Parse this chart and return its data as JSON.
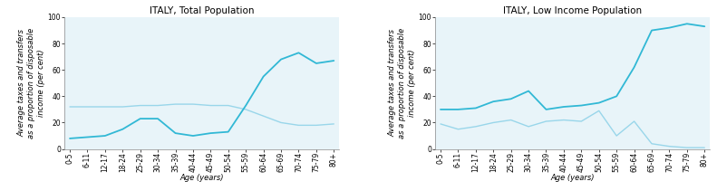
{
  "age_labels": [
    "0-5",
    "6-11",
    "12-17",
    "18-24",
    "25-29",
    "30-34",
    "35-39",
    "40-44",
    "45-49",
    "50-54",
    "55-59",
    "60-64",
    "65-69",
    "70-74",
    "75-79",
    "80+"
  ],
  "total_dark": [
    8,
    9,
    10,
    15,
    23,
    23,
    12,
    10,
    12,
    13,
    33,
    55,
    68,
    73,
    65,
    67
  ],
  "total_light": [
    32,
    32,
    32,
    32,
    33,
    33,
    34,
    34,
    33,
    33,
    30,
    25,
    20,
    18,
    18,
    19
  ],
  "low_dark": [
    30,
    30,
    31,
    36,
    38,
    44,
    30,
    32,
    33,
    35,
    40,
    62,
    90,
    92,
    95,
    93
  ],
  "low_light": [
    19,
    15,
    17,
    20,
    22,
    17,
    21,
    22,
    21,
    29,
    10,
    21,
    4,
    2,
    1,
    1
  ],
  "title_left": "ITALY, Total Population",
  "title_right": "ITALY, Low Income Population",
  "ylabel": "Average taxes and transfers\nas a proportion of disposable\nincome (per cent)",
  "xlabel": "Age (years)",
  "ylim": [
    0,
    100
  ],
  "fig_bg": "#ffffff",
  "plot_bg": "#e8f4f9",
  "dark_line_color": "#31b8d5",
  "light_line_color": "#99d6ea",
  "title_fontsize": 7.5,
  "label_fontsize": 6.0,
  "tick_fontsize": 5.5
}
